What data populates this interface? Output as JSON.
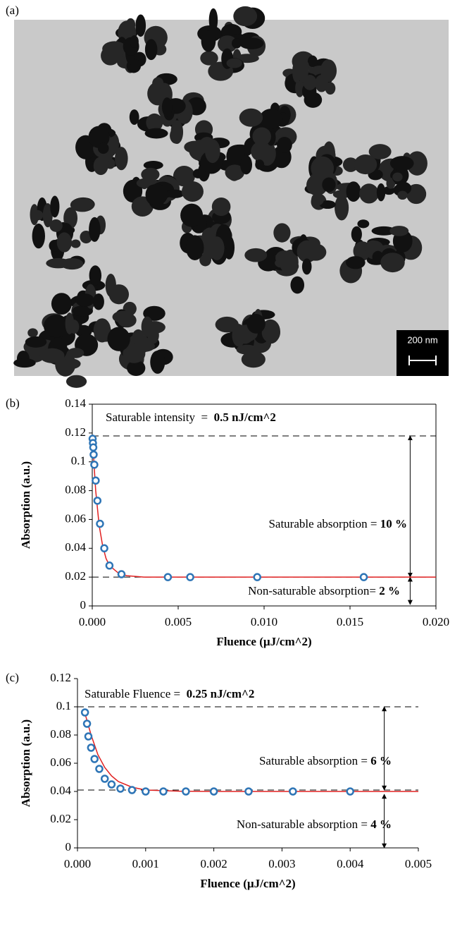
{
  "image": {
    "label": "(a)",
    "scale_bar": "200 nm"
  },
  "chart_data": [
    {
      "type": "scatter",
      "panel_label": "(b)",
      "x_label": "Fluence (µJ/cm^2)",
      "y_label": "Absorption (a.u.)",
      "xlim": [
        0,
        0.02
      ],
      "ylim": [
        0,
        0.14
      ],
      "xticks": [
        {
          "value": 0,
          "label": "0.000"
        },
        {
          "value": 0.005,
          "label": "0.005"
        },
        {
          "value": 0.01,
          "label": "0.010"
        },
        {
          "value": 0.015,
          "label": "0.015"
        },
        {
          "value": 0.02,
          "label": "0.020"
        }
      ],
      "yticks": [
        0,
        0.02,
        0.04,
        0.06,
        0.08,
        0.1,
        0.12,
        0.14
      ],
      "frame": true,
      "color": "#2e75b6",
      "x": [
        2e-05,
        4e-05,
        6e-05,
        8e-05,
        0.00012,
        0.0002,
        0.0003,
        0.00045,
        0.0007,
        0.001,
        0.0017,
        0.0044,
        0.0057,
        0.0096,
        0.0158
      ],
      "values": [
        0.116,
        0.113,
        0.11,
        0.105,
        0.098,
        0.087,
        0.073,
        0.057,
        0.04,
        0.028,
        0.022,
        0.02,
        0.02,
        0.02,
        0.02
      ],
      "fit": {
        "color": "#e02020",
        "x": [
          0,
          0.0002,
          0.0004,
          0.0006,
          0.0008,
          0.001,
          0.0015,
          0.002,
          0.003,
          0.005,
          0.02
        ],
        "values": [
          0.118,
          0.08,
          0.056,
          0.042,
          0.033,
          0.028,
          0.023,
          0.021,
          0.02,
          0.02,
          0.02
        ]
      },
      "hlines": [
        0.118,
        0.02
      ],
      "arrows": [
        {
          "x": 0.0185,
          "y": [
            0.118,
            0.02
          ]
        },
        {
          "x": 0.0185,
          "y": [
            0.02,
            0.001
          ]
        }
      ],
      "annotations": [
        {
          "text": "Saturable intensity  =  ",
          "bold": "0.5 nJ/cm^2"
        },
        {
          "text": "Saturable absorption = ",
          "bold": "10 %"
        },
        {
          "text": "Non-saturable absorption= ",
          "bold": "2 %"
        }
      ]
    },
    {
      "type": "scatter",
      "panel_label": "(c)",
      "x_label": "Fluence (µJ/cm^2)",
      "y_label": "Absorption (a.u.)",
      "xlim": [
        0,
        0.005
      ],
      "ylim": [
        0,
        0.12
      ],
      "xticks": [
        {
          "value": 0,
          "label": "0.000"
        },
        {
          "value": 0.001,
          "label": "0.001"
        },
        {
          "value": 0.002,
          "label": "0.002"
        },
        {
          "value": 0.003,
          "label": "0.003"
        },
        {
          "value": 0.004,
          "label": "0.004"
        },
        {
          "value": 0.005,
          "label": "0.005"
        }
      ],
      "yticks": [
        0,
        0.02,
        0.04,
        0.06,
        0.08,
        0.1,
        0.12
      ],
      "frame": false,
      "color": "#2e75b6",
      "x": [
        0.00011,
        0.00014,
        0.00016,
        0.0002,
        0.00025,
        0.00032,
        0.0004,
        0.0005,
        0.00063,
        0.0008,
        0.001,
        0.00126,
        0.00159,
        0.002,
        0.00251,
        0.00316,
        0.004
      ],
      "values": [
        0.096,
        0.088,
        0.079,
        0.071,
        0.063,
        0.056,
        0.049,
        0.045,
        0.042,
        0.041,
        0.04,
        0.04,
        0.04,
        0.04,
        0.04,
        0.04,
        0.04
      ],
      "fit": {
        "color": "#e02020",
        "x": [
          0.0001,
          0.0002,
          0.0003,
          0.0004,
          0.0005,
          0.0006,
          0.0008,
          0.001,
          0.0015,
          0.002,
          0.005
        ],
        "values": [
          0.097,
          0.08,
          0.066,
          0.057,
          0.051,
          0.047,
          0.043,
          0.041,
          0.0402,
          0.04,
          0.04
        ]
      },
      "hlines": [
        0.1,
        0.041
      ],
      "arrows": [
        {
          "x": 0.0045,
          "y": [
            0.1,
            0.041
          ]
        },
        {
          "x": 0.0045,
          "y": [
            0.038,
            0
          ]
        }
      ],
      "annotations": [
        {
          "text": "Saturable Fluence =  ",
          "bold": "0.25 nJ/cm^2"
        },
        {
          "text": "Saturable absorption = ",
          "bold": "6 %"
        },
        {
          "text": "Non-saturable absorption = ",
          "bold": "4 %"
        }
      ]
    }
  ]
}
